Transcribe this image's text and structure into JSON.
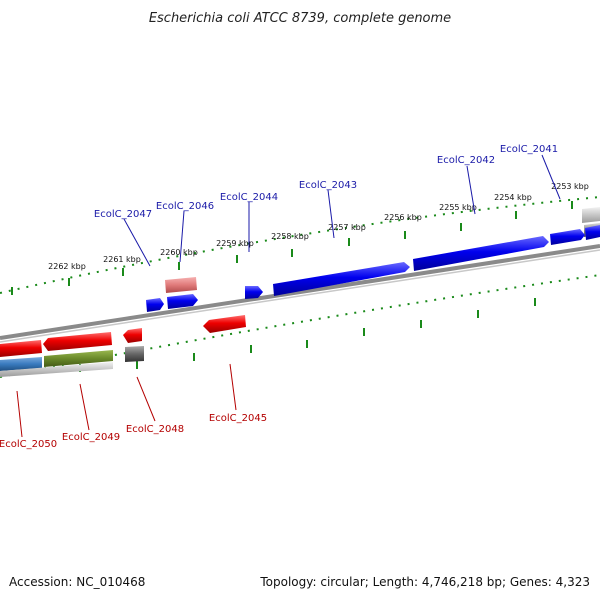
{
  "title": "Escherichia coli ATCC 8739, complete genome",
  "footer": {
    "accession": "Accession: NC_010468",
    "summary": "Topology: circular; Length: 4,746,218 bp; Genes: 4,323"
  },
  "colors": {
    "forward_gene": "#0000ee",
    "reverse_gene": "#ee0000",
    "backbone": "#888888",
    "tick": "#1a8a1a",
    "forward_label": "#1a1aa8",
    "reverse_label": "#b40000",
    "feature_blue": "#3a7bbf",
    "feature_green": "#6a8a2a",
    "feature_grey": "#666666",
    "feature_pink": "#e07a7a"
  },
  "scale_labels": [
    "2253 kbp",
    "2254 kbp",
    "2255 kbp",
    "2256 kbp",
    "2257 kbp",
    "2258 kbp",
    "2259 kbp",
    "2260 kbp",
    "2261 kbp",
    "2262 kbp"
  ],
  "forward_genes": [
    "EcolC_2041",
    "EcolC_2042",
    "EcolC_2043",
    "EcolC_2044",
    "EcolC_2046",
    "EcolC_2047"
  ],
  "reverse_genes": [
    "EcolC_2045",
    "EcolC_2048",
    "EcolC_2049",
    "EcolC_2050"
  ]
}
